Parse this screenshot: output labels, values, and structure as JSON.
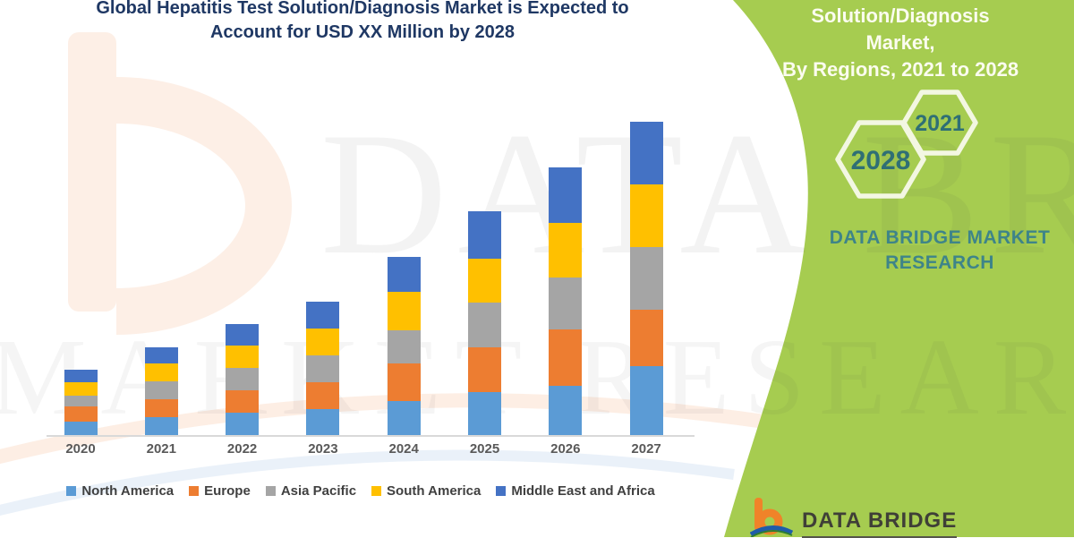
{
  "header": {
    "title_line1": "Global Hepatitis Test Solution/Diagnosis Market is Expected to",
    "title_line2": "Account for USD XX Million by 2028"
  },
  "side_panel": {
    "bg_color": "#A6CC50",
    "heading_line1": "Solution/Diagnosis Market,",
    "heading_line2": "By Regions, 2021 to 2028",
    "hexagon_back_label": "2028",
    "hexagon_front_label": "2021",
    "accent_text_color": "#2F6F75",
    "brand_line1": "DATA BRIDGE MARKET",
    "brand_line2": "RESEARCH"
  },
  "watermark": {
    "line1": "DATA BRIDGE",
    "line2": "MARKET RESEARCH"
  },
  "footer": {
    "logo_letter": "b",
    "logo_text": "DATA BRIDGE"
  },
  "chart_data": {
    "type": "bar",
    "stacked": true,
    "title": "Global Hepatitis Test Solution/Diagnosis Market is Expected to Account for USD XX Million by 2028",
    "categories": [
      "2020",
      "2021",
      "2022",
      "2023",
      "2024",
      "2025",
      "2026",
      "2027"
    ],
    "series": [
      {
        "name": "North America",
        "color": "#5B9BD5",
        "values": [
          15,
          20,
          25,
          29,
          38,
          48,
          55,
          77
        ]
      },
      {
        "name": "Europe",
        "color": "#ED7D31",
        "values": [
          17,
          20,
          25,
          30,
          42,
          50,
          63,
          63
        ]
      },
      {
        "name": "Asia Pacific",
        "color": "#A5A5A5",
        "values": [
          12,
          20,
          25,
          30,
          37,
          50,
          58,
          70
        ]
      },
      {
        "name": "South America",
        "color": "#FFC000",
        "values": [
          15,
          20,
          25,
          30,
          43,
          49,
          61,
          70
        ]
      },
      {
        "name": "Middle East and Africa",
        "color": "#4472C4",
        "values": [
          14,
          18,
          24,
          30,
          39,
          53,
          62,
          70
        ]
      }
    ],
    "ylim": [
      0,
      365
    ],
    "grid": false,
    "legend_position": "bottom",
    "xlabel": "",
    "ylabel": "",
    "value_axis_note": "no value axis shown; values are unlabeled (USD XX Million), heights estimated in relative units"
  }
}
